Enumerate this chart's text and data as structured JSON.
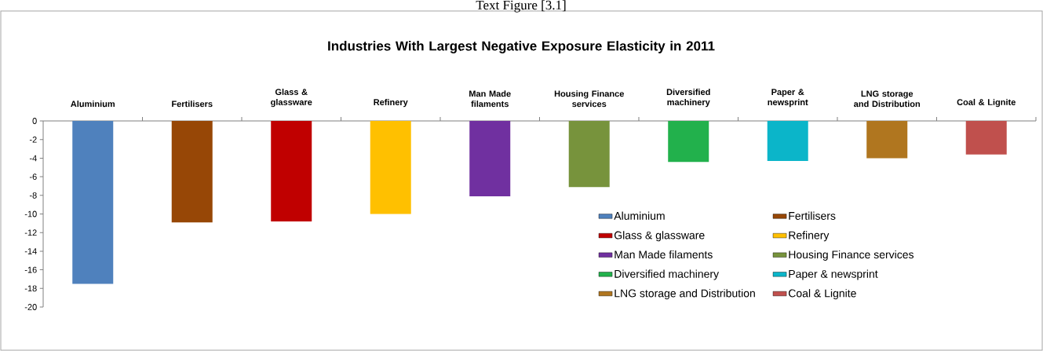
{
  "chart_data": {
    "type": "bar",
    "title": "Industries With Largest Negative Exposure Elasticity in 2011",
    "annotations": [
      "Text Figure [3.1]"
    ],
    "categories": [
      "Aluminium",
      "Fertilisers",
      "Glass & glassware",
      "Refinery",
      "Man Made filaments",
      "Housing Finance services",
      "Diversified machinery",
      "Paper & newsprint",
      "LNG storage and Distribution",
      "Coal & Lignite"
    ],
    "series": [
      {
        "name": "Aluminium",
        "color": "#4f81bd",
        "values": [
          -17.5,
          null,
          null,
          null,
          null,
          null,
          null,
          null,
          null,
          null
        ]
      },
      {
        "name": "Fertilisers",
        "color": "#974706",
        "values": [
          null,
          -10.9,
          null,
          null,
          null,
          null,
          null,
          null,
          null,
          null
        ]
      },
      {
        "name": "Glass & glassware",
        "color": "#c00000",
        "values": [
          null,
          null,
          -10.8,
          null,
          null,
          null,
          null,
          null,
          null,
          null
        ]
      },
      {
        "name": "Refinery",
        "color": "#ffc000",
        "values": [
          null,
          null,
          null,
          -10.0,
          null,
          null,
          null,
          null,
          null,
          null
        ]
      },
      {
        "name": "Man Made filaments",
        "color": "#7030a0",
        "values": [
          null,
          null,
          null,
          null,
          -8.1,
          null,
          null,
          null,
          null,
          null
        ]
      },
      {
        "name": "Housing Finance services",
        "color": "#77933c",
        "values": [
          null,
          null,
          null,
          null,
          null,
          -7.1,
          null,
          null,
          null,
          null
        ]
      },
      {
        "name": "Diversified machinery",
        "color": "#22b14c",
        "values": [
          null,
          null,
          null,
          null,
          null,
          null,
          -4.4,
          null,
          null,
          null
        ]
      },
      {
        "name": "Paper & newsprint",
        "color": "#0bb5c9",
        "values": [
          null,
          null,
          null,
          null,
          null,
          null,
          null,
          -4.3,
          null,
          null
        ]
      },
      {
        "name": "LNG storage and Distribution",
        "color": "#b0761f",
        "values": [
          null,
          null,
          null,
          null,
          null,
          null,
          null,
          null,
          -4.0,
          null
        ]
      },
      {
        "name": "Coal & Lignite",
        "color": "#c0504d",
        "values": [
          null,
          null,
          null,
          null,
          null,
          null,
          null,
          null,
          null,
          -3.6
        ]
      }
    ],
    "ylim": [
      -20,
      0
    ],
    "yticks": [
      -20,
      -18,
      -16,
      -14,
      -12,
      -10,
      -8,
      -6,
      -4,
      -2,
      0
    ],
    "legend": "bottom right"
  }
}
